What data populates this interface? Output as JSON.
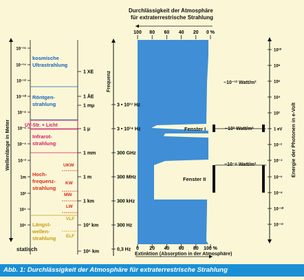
{
  "top_axis": {
    "title_line1": "Durchlässigkeit der Atmosphäre",
    "title_line2": "für extraterrestrische Strahlung",
    "ticks": [
      "100",
      "80",
      "60",
      "40",
      "20",
      "0 %"
    ]
  },
  "bottom_axis": {
    "ticks": [
      "0",
      "20",
      "40",
      "60",
      "80",
      "100 %"
    ],
    "title": "Extinktion (Absorption in der Atmosphäre)"
  },
  "left_axis": {
    "title": "Wellenlänge in Meter",
    "ticks": [
      "10⁻¹⁶",
      "10⁻¹⁴",
      "10⁻¹²",
      "10⁻¹⁰",
      "10⁻⁸",
      "10⁻⁶",
      "10⁻⁴",
      "10⁻²",
      "1m",
      "10²",
      "10⁴",
      "10⁶"
    ],
    "bottom_label": "statisch"
  },
  "bands": {
    "cosmic": "kosmische Ultrastrahlung",
    "xray": "Röntgen-strahlung",
    "uv": "UV-Str. + Licht",
    "ir": "Infrarot-strahlung",
    "hf": "Hoch-frequenz-strahlung",
    "lw_band": "Längst-wellen-strahlung",
    "sub": [
      "UKW",
      "KW",
      "MW",
      "LW",
      "VLF",
      "ELF"
    ]
  },
  "wavelength_marks": [
    "1 XE",
    "1 ÅE",
    "1 mμ",
    "1 μ",
    "1 mm",
    "1 m",
    "1 km",
    "10³ km",
    "10⁶ km"
  ],
  "frequency": {
    "title": "Frequenz",
    "ticks": [
      "3 • 10¹⁷ Hz",
      "3 • 10¹⁴ Hz",
      "300 GHz",
      "300 MHz",
      "300 kHz",
      "300 Hz",
      "0,3 Hz"
    ]
  },
  "windows": {
    "optical": "Fenster I",
    "radio": "Fenster II"
  },
  "power": [
    "~10⁻¹² Watt/m²",
    "~10³ Watt/m²",
    "~10⁻⁸ Watt/m²"
  ],
  "energy_axis": {
    "title": "Energie der Photonen in e-Volt",
    "ticks": [
      "10¹⁰",
      "10⁸",
      "10⁶",
      "10⁴",
      "10²",
      "1 eV",
      "10⁻²",
      "10⁻⁴",
      "10⁻⁶",
      "10⁻⁸",
      "10⁻¹⁰",
      "10⁻¹²"
    ]
  },
  "caption": "Abb. 1: Durchlässigkeit der Atmosphäre für extraterrestrische Strahlung",
  "colors": {
    "absorption": "#3f8ed6",
    "caption_bar": "#1b8fd6",
    "cosmic": "#1a63b5",
    "xray": "#1a63b5",
    "uv": "#d21a6b",
    "ir": "#d21a6b",
    "hf": "#d62a1a",
    "lw": "#d6a51a"
  }
}
